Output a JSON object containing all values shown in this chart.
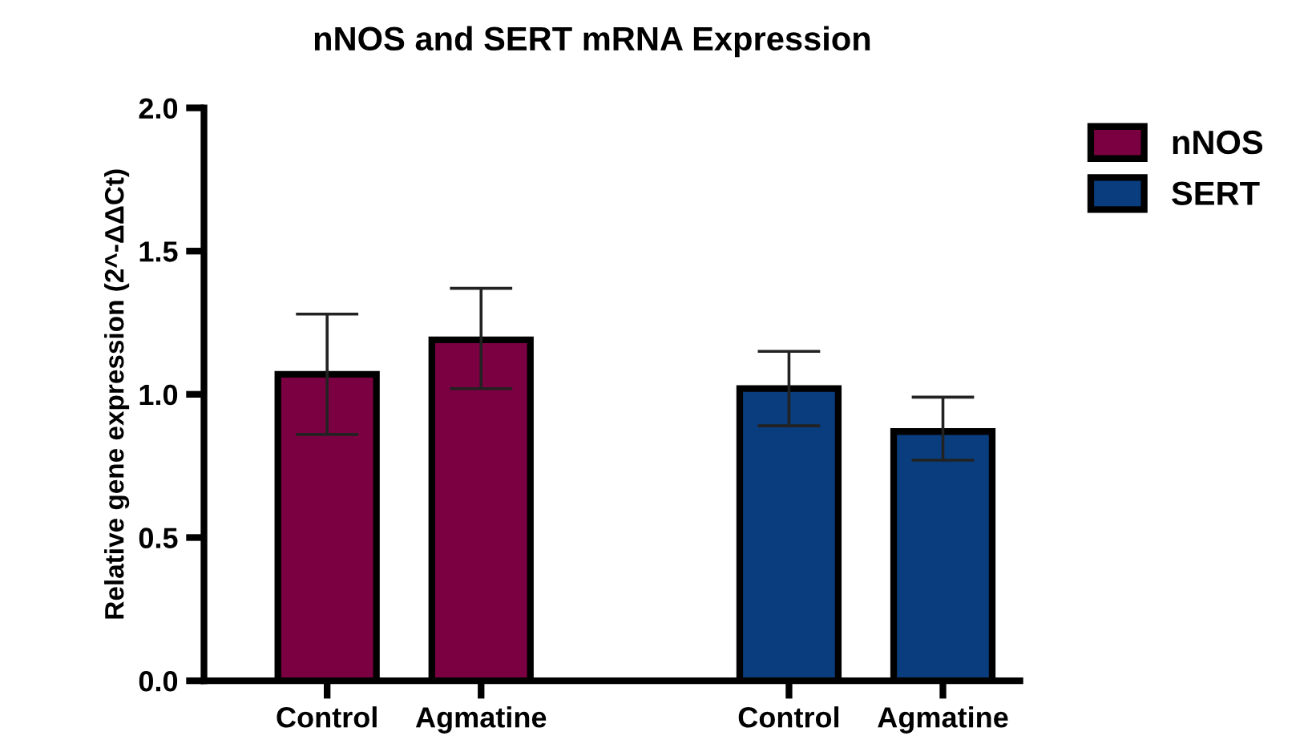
{
  "chart_data": {
    "type": "bar",
    "title": "nNOS and SERT mRNA Expression",
    "ylabel": "Relative gene expression (2^-ΔΔCt)",
    "categories": [
      "Control",
      "Agmatine",
      null,
      "Control",
      "Agmatine"
    ],
    "series": [
      {
        "name": "nNOS",
        "color": "#7b0041",
        "values": [
          1.07,
          1.19,
          null,
          null,
          null
        ],
        "errors": [
          [
            0.86,
            1.28
          ],
          [
            1.02,
            1.37
          ],
          null,
          null,
          null
        ]
      },
      {
        "name": "SERT",
        "color": "#0a3d7e",
        "values": [
          null,
          null,
          null,
          1.02,
          0.87
        ],
        "errors": [
          null,
          null,
          null,
          [
            0.89,
            1.15
          ],
          [
            0.77,
            0.99
          ]
        ]
      }
    ],
    "ylim": [
      0,
      2.0
    ],
    "yticks": [
      {
        "value": 0,
        "label": "0.0"
      },
      {
        "value": 0.5,
        "label": "0.5"
      },
      {
        "value": 1,
        "label": "1.0"
      },
      {
        "value": 1.5,
        "label": "1.5"
      },
      {
        "value": 2,
        "label": "2.0"
      }
    ],
    "grid": false,
    "legend": "top right"
  }
}
